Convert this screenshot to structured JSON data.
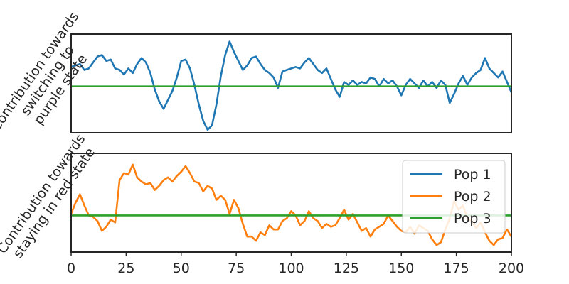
{
  "chart_data": {
    "type": "line",
    "xlim": [
      0,
      200
    ],
    "x_ticks": [
      0,
      25,
      50,
      75,
      100,
      125,
      150,
      175,
      200
    ],
    "grid": false,
    "legend": {
      "placement": "right",
      "entries": [
        {
          "name": "Pop 1",
          "color": "#1f77b4"
        },
        {
          "name": "Pop 2",
          "color": "#ff7f0e"
        },
        {
          "name": "Pop 3",
          "color": "#2ca02c"
        }
      ]
    },
    "panels": [
      {
        "ylabel_lines": [
          "Contribution towards",
          "switching to",
          "purple state"
        ],
        "ylim": [
          -1.55,
          1.75
        ],
        "series": [
          {
            "name": "Pop 1",
            "color": "#1f77b4",
            "x": [
              0,
              2,
              4,
              6,
              8,
              10,
              12,
              14,
              16,
              18,
              20,
              22,
              24,
              26,
              28,
              30,
              32,
              34,
              36,
              38,
              40,
              42,
              44,
              46,
              48,
              50,
              52,
              54,
              56,
              58,
              60,
              62,
              64,
              66,
              68,
              70,
              72,
              74,
              76,
              78,
              80,
              82,
              84,
              86,
              88,
              90,
              92,
              94,
              96,
              98,
              100,
              102,
              104,
              106,
              108,
              110,
              112,
              114,
              116,
              118,
              120,
              122,
              124,
              126,
              128,
              130,
              132,
              134,
              136,
              138,
              140,
              142,
              144,
              146,
              148,
              150,
              152,
              154,
              156,
              158,
              160,
              162,
              164,
              166,
              168,
              170,
              172,
              174,
              176,
              178,
              180,
              182,
              184,
              186,
              188,
              190,
              192,
              194,
              196,
              198,
              200
            ],
            "y": [
              0.65,
              0.7,
              0.75,
              0.55,
              0.6,
              0.8,
              1.0,
              1.05,
              0.85,
              0.9,
              0.6,
              0.55,
              0.4,
              0.6,
              0.45,
              0.75,
              0.95,
              0.8,
              0.45,
              -0.1,
              -0.5,
              -0.75,
              -0.45,
              -0.15,
              0.3,
              0.85,
              0.9,
              0.6,
              0.05,
              -0.6,
              -1.15,
              -1.45,
              -1.3,
              -0.6,
              0.35,
              1.05,
              1.5,
              1.15,
              0.85,
              0.55,
              0.7,
              0.95,
              1.0,
              0.75,
              0.55,
              0.45,
              0.3,
              -0.05,
              0.5,
              0.55,
              0.6,
              0.65,
              0.6,
              0.8,
              0.95,
              0.75,
              0.55,
              0.45,
              0.6,
              0.25,
              -0.1,
              -0.35,
              0.15,
              0.05,
              0.2,
              0.05,
              0.15,
              0.1,
              0.3,
              0.25,
              0.0,
              0.25,
              0.1,
              0.2,
              0.0,
              -0.3,
              0.05,
              0.25,
              0.1,
              -0.05,
              0.2,
              0.0,
              0.15,
              -0.05,
              0.2,
              0.05,
              -0.55,
              -0.25,
              0.1,
              0.35,
              0.05,
              0.3,
              0.45,
              0.55,
              0.95,
              0.6,
              0.45,
              0.3,
              0.5,
              0.15,
              -0.2
            ]
          },
          {
            "name": "Pop 3",
            "color": "#2ca02c",
            "x": [
              0,
              200
            ],
            "y": [
              0,
              0
            ]
          }
        ]
      },
      {
        "ylabel_lines": [
          "Contribution towards",
          "staying in red state"
        ],
        "ylim": [
          -1.3,
          2.2
        ],
        "series": [
          {
            "name": "Pop 2",
            "color": "#ff7f0e",
            "x": [
              0,
              2,
              4,
              6,
              8,
              10,
              12,
              14,
              16,
              18,
              20,
              22,
              24,
              26,
              28,
              30,
              32,
              34,
              36,
              38,
              40,
              42,
              44,
              46,
              48,
              50,
              52,
              54,
              56,
              58,
              60,
              62,
              64,
              66,
              68,
              70,
              72,
              74,
              76,
              78,
              80,
              82,
              84,
              86,
              88,
              90,
              92,
              94,
              96,
              98,
              100,
              102,
              104,
              106,
              108,
              110,
              112,
              114,
              116,
              118,
              120,
              122,
              124,
              126,
              128,
              130,
              132,
              134,
              136,
              138,
              140,
              142,
              144,
              146,
              148,
              150,
              152,
              154,
              156,
              158,
              160,
              162,
              164,
              166,
              168,
              170,
              172,
              174,
              176,
              178,
              180,
              182,
              184,
              186,
              188,
              190,
              192,
              194,
              196,
              198,
              200
            ],
            "y": [
              0.05,
              0.45,
              0.75,
              0.35,
              0.0,
              -0.05,
              -0.2,
              -0.55,
              -0.4,
              -0.15,
              -0.25,
              1.25,
              1.5,
              1.45,
              1.8,
              1.35,
              1.2,
              1.1,
              1.15,
              0.9,
              1.05,
              1.25,
              1.35,
              1.2,
              1.4,
              1.55,
              1.75,
              1.5,
              1.2,
              1.15,
              0.85,
              1.05,
              0.95,
              0.55,
              0.7,
              0.55,
              0.05,
              0.55,
              0.25,
              -0.3,
              -0.75,
              -0.75,
              -0.9,
              -0.6,
              -0.7,
              -0.35,
              -0.5,
              -0.5,
              -0.2,
              -0.1,
              0.15,
              0.0,
              -0.35,
              -0.2,
              0.15,
              -0.1,
              -0.2,
              -0.45,
              -0.3,
              -0.4,
              -0.35,
              -0.1,
              0.2,
              -0.15,
              0.05,
              -0.25,
              -0.55,
              -0.45,
              -0.75,
              -0.5,
              -0.4,
              -0.3,
              0.0,
              -0.2,
              -0.4,
              -0.55,
              -0.6,
              -0.4,
              -0.65,
              -0.35,
              -0.45,
              -0.55,
              -0.85,
              -1.05,
              -0.95,
              -0.5,
              -0.1,
              0.5,
              0.2,
              0.35,
              -0.1,
              -0.2,
              -0.45,
              -0.25,
              -0.6,
              -0.9,
              -1.05,
              -0.85,
              -0.8,
              -0.5,
              -0.75
            ]
          },
          {
            "name": "Pop 3",
            "color": "#2ca02c",
            "x": [
              0,
              200
            ],
            "y": [
              0,
              0
            ]
          }
        ]
      }
    ]
  }
}
